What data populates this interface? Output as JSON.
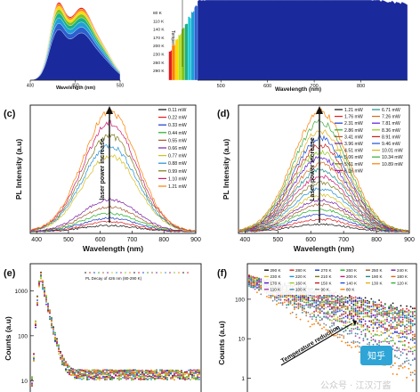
{
  "chart_data": [
    {
      "panel": "(a)",
      "type": "area",
      "xlabel": "Wavelength (nm)",
      "xlim": [
        400,
        500
      ],
      "x_ticks": [
        400,
        450,
        500
      ],
      "legend_title": "Temperature",
      "series": [
        {
          "name": "80 K",
          "color": "#e41a1c"
        },
        {
          "name": "110 K",
          "color": "#ff7f00"
        },
        {
          "name": "140 K",
          "color": "#ffd700"
        },
        {
          "name": "170 K",
          "color": "#7fc41c"
        },
        {
          "name": "200 K",
          "color": "#1cb08a"
        },
        {
          "name": "230 K",
          "color": "#1f9fd6"
        },
        {
          "name": "260 K",
          "color": "#2c5fcf"
        },
        {
          "name": "290 K",
          "color": "#1a2a9c"
        }
      ],
      "peaks_nm": [
        430,
        455
      ],
      "relative_peak_heights": [
        1.0,
        0.98,
        0.95,
        0.91,
        0.86,
        0.8,
        0.73,
        0.65
      ]
    },
    {
      "panel": "(b)",
      "type": "area",
      "xlabel": "Wavelength (nm)",
      "xlim": [
        450,
        900
      ],
      "x_ticks": [
        500,
        600,
        700,
        800
      ],
      "colors": [
        "#e41a1c",
        "#ff7f00",
        "#ffd700",
        "#b8e01c",
        "#7fc41c",
        "#1cb08a",
        "#1fc9d6",
        "#1f9fd6",
        "#2c5fcf",
        "#1a2a9c"
      ],
      "peak_nm": 650
    },
    {
      "panel": "(c)",
      "type": "line",
      "xlabel": "Wavelength (nm)",
      "ylabel": "PL Intensity (a.u)",
      "xlim": [
        380,
        900
      ],
      "x_ticks": [
        400,
        500,
        600,
        700,
        800,
        900
      ],
      "annotation": "laser power increase",
      "peak_nm": 630,
      "series": [
        {
          "name": "0.11 mW",
          "color": "#111111",
          "amp": 0.05
        },
        {
          "name": "0.22 mW",
          "color": "#e41a1c",
          "amp": 0.08
        },
        {
          "name": "0.33 mW",
          "color": "#1a3acc",
          "amp": 0.11
        },
        {
          "name": "0.44 mW",
          "color": "#1fb01f",
          "amp": 0.15
        },
        {
          "name": "0.55 mW",
          "color": "#a35a2a",
          "amp": 0.2
        },
        {
          "name": "0.66 mW",
          "color": "#7a1fa3",
          "amp": 0.26
        },
        {
          "name": "0.77 mW",
          "color": "#d4c01c",
          "amp": 0.62
        },
        {
          "name": "0.88 mW",
          "color": "#1f8fd6",
          "amp": 0.7
        },
        {
          "name": "0.99 mW",
          "color": "#7a7a1c",
          "amp": 0.78
        },
        {
          "name": "1.10 mW",
          "color": "#cc1c6e",
          "amp": 0.88
        },
        {
          "name": "1.21 mW",
          "color": "#ff7f00",
          "amp": 0.97
        }
      ]
    },
    {
      "panel": "(d)",
      "type": "line",
      "xlabel": "Wavelength (nm)",
      "ylabel": "PL Intensity (a.u)",
      "xlim": [
        380,
        900
      ],
      "x_ticks": [
        400,
        500,
        600,
        700,
        800,
        900
      ],
      "annotation": "Laser power increase",
      "peak_nm": 630,
      "series": [
        {
          "name": "1.21 mW",
          "color": "#111111",
          "amp": 0.06
        },
        {
          "name": "1.76 mW",
          "color": "#e41a1c",
          "amp": 0.1
        },
        {
          "name": "2.31 mW",
          "color": "#1a3acc",
          "amp": 0.14
        },
        {
          "name": "2.86 mW",
          "color": "#1fb01f",
          "amp": 0.18
        },
        {
          "name": "3.41 mW",
          "color": "#a35a2a",
          "amp": 0.22
        },
        {
          "name": "3.96 mW",
          "color": "#7a1fa3",
          "amp": 0.26
        },
        {
          "name": "4.51 mW",
          "color": "#d4c01c",
          "amp": 0.3
        },
        {
          "name": "5.06 mW",
          "color": "#1f8fd6",
          "amp": 0.35
        },
        {
          "name": "5.61 mW",
          "color": "#7a7a1c",
          "amp": 0.4
        },
        {
          "name": "6.16 mW",
          "color": "#cc1c6e",
          "amp": 0.45
        },
        {
          "name": "6.71 mW",
          "color": "#1c8f8f",
          "amp": 0.5
        },
        {
          "name": "7.26 mW",
          "color": "#d46a1c",
          "amp": 0.55
        },
        {
          "name": "7.81 mW",
          "color": "#5a1cd4",
          "amp": 0.6
        },
        {
          "name": "8.36 mW",
          "color": "#8fcc1c",
          "amp": 0.65
        },
        {
          "name": "8.91 mW",
          "color": "#cc1c1c",
          "amp": 0.7
        },
        {
          "name": "9.46 mW",
          "color": "#1c4fd4",
          "amp": 0.76
        },
        {
          "name": "10.01 mW",
          "color": "#e0b01c",
          "amp": 0.82
        },
        {
          "name": "10.34 mW",
          "color": "#3aaa3a",
          "amp": 0.89
        },
        {
          "name": "10.89 mW",
          "color": "#ff7f00",
          "amp": 0.97
        }
      ]
    },
    {
      "panel": "(e)",
      "type": "scatter",
      "ylabel": "Counts (a.u)",
      "yscale": "log",
      "y_ticks": [
        10,
        100,
        1000
      ],
      "legend": "PL Decay of 426 nm (80-290 K)",
      "colors": [
        "#111111",
        "#e41a1c",
        "#1a3acc",
        "#1fb01f",
        "#a35a2a",
        "#7a1fa3",
        "#d4c01c",
        "#1f8fd6",
        "#cc1c6e",
        "#7fc41c",
        "#ff7f00"
      ]
    },
    {
      "panel": "(f)",
      "type": "scatter",
      "ylabel": "Counts (a.u)",
      "yscale": "log",
      "y_ticks": [
        1,
        10,
        100
      ],
      "annotation": "Temperature reduction",
      "legend_cols": 6,
      "series": [
        {
          "name": "290 K",
          "color": "#111111"
        },
        {
          "name": "280 K",
          "color": "#e41a1c"
        },
        {
          "name": "270 K",
          "color": "#1a3acc"
        },
        {
          "name": "260 K",
          "color": "#1fb01f"
        },
        {
          "name": "250 K",
          "color": "#a35a2a"
        },
        {
          "name": "240 K",
          "color": "#7a1fa3"
        },
        {
          "name": "230 K",
          "color": "#d4c01c"
        },
        {
          "name": "220 K",
          "color": "#1f8fd6"
        },
        {
          "name": "210 K",
          "color": "#7a7a1c"
        },
        {
          "name": "200 K",
          "color": "#cc1c6e"
        },
        {
          "name": "190 K",
          "color": "#1c8f8f"
        },
        {
          "name": "180 K",
          "color": "#d46a1c"
        },
        {
          "name": "170 K",
          "color": "#5a1cd4"
        },
        {
          "name": "160 K",
          "color": "#8fcc1c"
        },
        {
          "name": "150 K",
          "color": "#cc1c1c"
        },
        {
          "name": "140 K",
          "color": "#1c4fd4"
        },
        {
          "name": "130 K",
          "color": "#e0b01c"
        },
        {
          "name": "120 K",
          "color": "#3aaa3a"
        },
        {
          "name": "110 K",
          "color": "#aa3aaa"
        },
        {
          "name": "100 K",
          "color": "#3a8aaa"
        },
        {
          "name": "90 K",
          "color": "#888888"
        },
        {
          "name": "80 K",
          "color": "#ff7f00"
        }
      ]
    }
  ],
  "watermark": {
    "text": "公众号 · 江汉汀酱",
    "logo_text": "知乎"
  }
}
